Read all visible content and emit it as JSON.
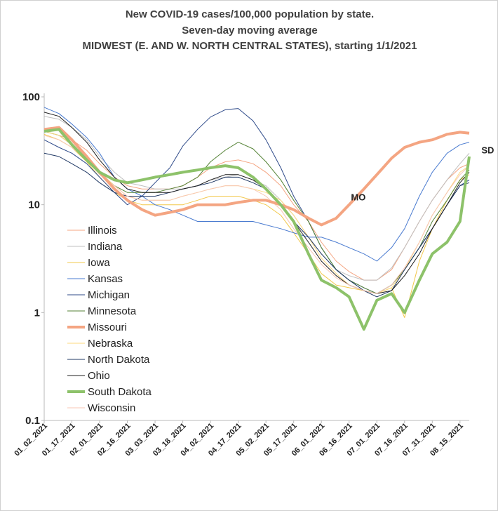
{
  "chart_data": {
    "type": "line",
    "title": [
      "New COVID-19 cases/100,000 population by state.",
      "Seven-day moving average",
      "MIDWEST (E. AND W. NORTH CENTRAL STATES), starting 1/1/2021"
    ],
    "xlabel": "",
    "ylabel": "",
    "yscale": "log",
    "ylim": [
      0.1,
      100
    ],
    "yticks": [
      "0.1",
      "1",
      "10",
      "100"
    ],
    "xlim": [
      "2021-01-02",
      "2021-08-20"
    ],
    "xticks": [
      "01_02_2021",
      "01_17_2021",
      "02_01_2021",
      "02_16_2021",
      "03_03_2021",
      "03_18_2021",
      "04_02_2021",
      "04_17_2021",
      "05_02_2021",
      "05_17_2021",
      "06_01_2021",
      "06_16_2021",
      "07_01_2021",
      "07_16_2021",
      "07_31_2021",
      "08_15_2021"
    ],
    "grid": false,
    "legend_position": "left-bottom",
    "x_dates": [
      "2021-01-02",
      "2021-01-10",
      "2021-01-17",
      "2021-01-25",
      "2021-02-01",
      "2021-02-09",
      "2021-02-16",
      "2021-02-24",
      "2021-03-03",
      "2021-03-11",
      "2021-03-18",
      "2021-03-26",
      "2021-04-02",
      "2021-04-10",
      "2021-04-17",
      "2021-04-25",
      "2021-05-02",
      "2021-05-10",
      "2021-05-17",
      "2021-05-25",
      "2021-06-01",
      "2021-06-09",
      "2021-06-16",
      "2021-06-24",
      "2021-07-01",
      "2021-07-09",
      "2021-07-16",
      "2021-07-24",
      "2021-07-31",
      "2021-08-08",
      "2021-08-15",
      "2021-08-20"
    ],
    "series": [
      {
        "name": "Illinois",
        "color": "#f4a582",
        "width": 1,
        "values": [
          48,
          44,
          40,
          32,
          24,
          18,
          15,
          14,
          14,
          14,
          15,
          18,
          22,
          25,
          26,
          24,
          20,
          15,
          10,
          7,
          4.5,
          3,
          2.4,
          2,
          2,
          2.5,
          4,
          7,
          11,
          17,
          22,
          24
        ]
      },
      {
        "name": "Indiana",
        "color": "#bfbfbf",
        "width": 1,
        "values": [
          66,
          62,
          52,
          40,
          28,
          20,
          16,
          15,
          14,
          14,
          14,
          15,
          17,
          18,
          19,
          17,
          15,
          11,
          8,
          5,
          3.5,
          2.5,
          2.2,
          2,
          2,
          2.6,
          4,
          7,
          11,
          17,
          24,
          30
        ]
      },
      {
        "name": "Iowa",
        "color": "#f2c84b",
        "width": 1,
        "values": [
          45,
          40,
          34,
          25,
          18,
          13,
          11,
          10,
          10,
          10,
          10,
          11,
          12,
          12,
          12,
          11,
          10,
          8,
          5.5,
          3.5,
          2.3,
          1.8,
          1.7,
          1.6,
          1.5,
          1.7,
          0.9,
          3,
          6,
          11,
          17,
          19
        ]
      },
      {
        "name": "Kansas",
        "color": "#4a7bd0",
        "width": 1,
        "values": [
          80,
          70,
          56,
          42,
          30,
          18,
          14,
          12,
          10,
          9,
          8,
          7,
          7,
          7,
          7,
          7,
          6.5,
          6,
          5.5,
          5,
          5,
          4.5,
          4,
          3.5,
          3,
          4,
          6,
          12,
          20,
          30,
          36,
          38
        ]
      },
      {
        "name": "Michigan",
        "color": "#2f4b8a",
        "width": 1,
        "values": [
          40,
          34,
          30,
          24,
          18,
          13,
          10,
          12,
          16,
          22,
          35,
          50,
          65,
          76,
          78,
          60,
          40,
          22,
          12,
          7,
          4,
          2.5,
          2,
          1.7,
          1.5,
          1.8,
          2.5,
          4,
          6,
          10,
          15,
          17
        ]
      },
      {
        "name": "Minnesota",
        "color": "#548235",
        "width": 1,
        "values": [
          48,
          44,
          36,
          28,
          20,
          15,
          13,
          13,
          13,
          14,
          15,
          18,
          25,
          32,
          38,
          33,
          25,
          17,
          11,
          7,
          4,
          2.5,
          2,
          1.7,
          1.5,
          1.8,
          2.5,
          4,
          7,
          11,
          17,
          21
        ]
      },
      {
        "name": "Missouri",
        "color": "#f4a582",
        "width": 4,
        "values": [
          50,
          52,
          40,
          28,
          20,
          14,
          11,
          9,
          8,
          8.5,
          9,
          10,
          10,
          10,
          10.5,
          11,
          11,
          10,
          9,
          7.5,
          6.5,
          7.5,
          10,
          14,
          19,
          27,
          34,
          38,
          40,
          45,
          47,
          46
        ]
      },
      {
        "name": "Nebraska",
        "color": "#fcd97e",
        "width": 1,
        "values": [
          48,
          44,
          36,
          28,
          20,
          15,
          12,
          11,
          11,
          11,
          12,
          13,
          14,
          15,
          15,
          14,
          13,
          11,
          8,
          5,
          3.2,
          2.3,
          1.8,
          1.6,
          1.5,
          1.7,
          2.5,
          4.5,
          8,
          13,
          20,
          23
        ]
      },
      {
        "name": "North Dakota",
        "color": "#1f3864",
        "width": 1,
        "values": [
          30,
          28,
          24,
          20,
          16,
          13,
          12,
          12,
          12,
          13,
          14,
          15,
          16,
          18,
          18,
          16,
          14,
          10,
          7,
          5,
          3.5,
          2.5,
          2,
          1.6,
          1.4,
          1.6,
          2.5,
          4,
          6,
          10,
          15,
          16
        ]
      },
      {
        "name": "Ohio",
        "color": "#1f1f1f",
        "width": 1,
        "values": [
          72,
          66,
          52,
          38,
          26,
          18,
          14,
          13,
          13,
          13,
          14,
          15,
          17,
          19,
          19,
          17,
          14,
          10,
          7,
          4.5,
          3,
          2.2,
          1.8,
          1.6,
          1.5,
          1.6,
          2.2,
          3.5,
          6,
          10,
          16,
          20
        ]
      },
      {
        "name": "South Dakota",
        "color": "#8dc26a",
        "width": 4,
        "values": [
          48,
          50,
          36,
          26,
          20,
          17,
          16,
          17,
          18,
          19,
          20,
          21,
          22,
          23,
          22,
          18,
          14,
          10,
          7,
          3.5,
          2,
          1.7,
          1.4,
          0.7,
          1.3,
          1.5,
          1.0,
          2.0,
          3.5,
          4.5,
          7,
          28
        ]
      },
      {
        "name": "Wisconsin",
        "color": "#f8c7b4",
        "width": 1,
        "values": [
          44,
          40,
          34,
          26,
          19,
          15,
          12,
          11,
          11,
          11,
          12,
          13,
          14,
          15,
          15,
          14,
          12,
          9,
          6,
          4,
          2.8,
          2.1,
          1.8,
          1.6,
          1.5,
          1.8,
          2.6,
          4.5,
          8,
          13,
          19,
          23
        ]
      }
    ],
    "annotations": [
      {
        "text": "MO",
        "x": "2021-06-21",
        "y": 11
      },
      {
        "text": "SD",
        "x": "2021-08-30",
        "y": 30
      }
    ]
  }
}
